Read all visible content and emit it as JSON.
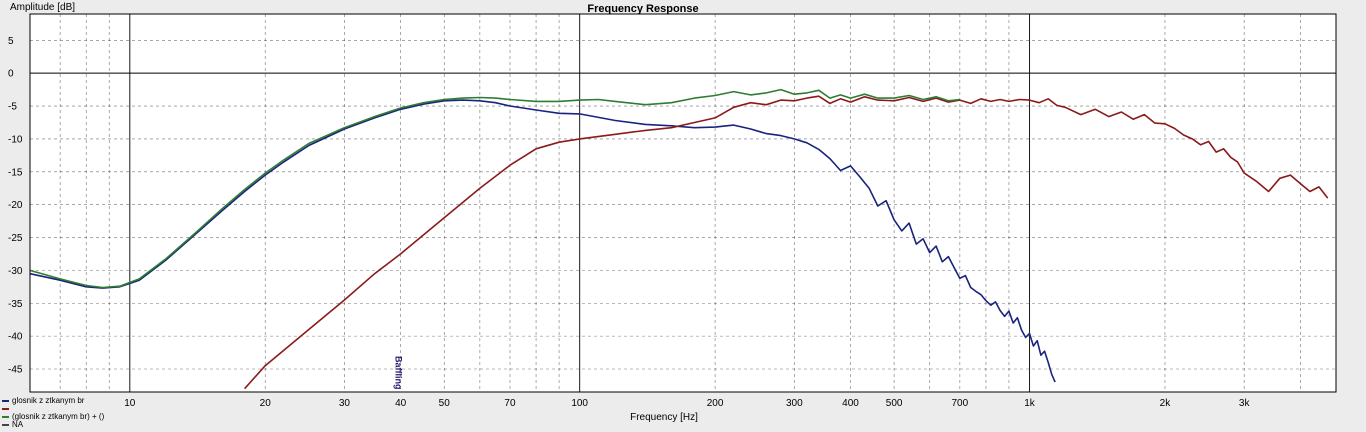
{
  "chart_data": {
    "type": "line",
    "title": "Frequency Response",
    "xlabel": "Frequency [Hz]",
    "ylabel": "Amplitude [dB]",
    "x_scale": "log",
    "xlim": [
      6,
      4800
    ],
    "ylim": [
      -48.5,
      9
    ],
    "grid": true,
    "y_ticks": [
      5,
      0,
      -5,
      -10,
      -15,
      -20,
      -25,
      -30,
      -35,
      -40,
      -45
    ],
    "x_ticks": [
      {
        "value": 10,
        "label": "10"
      },
      {
        "value": 20,
        "label": "20"
      },
      {
        "value": 30,
        "label": "30"
      },
      {
        "value": 40,
        "label": "40"
      },
      {
        "value": 50,
        "label": "50"
      },
      {
        "value": 70,
        "label": "70"
      },
      {
        "value": 100,
        "label": "100"
      },
      {
        "value": 200,
        "label": "200"
      },
      {
        "value": 300,
        "label": "300"
      },
      {
        "value": 400,
        "label": "400"
      },
      {
        "value": 500,
        "label": "500"
      },
      {
        "value": 700,
        "label": "700"
      },
      {
        "value": 1000,
        "label": "1k"
      },
      {
        "value": 2000,
        "label": "2k"
      },
      {
        "value": 3000,
        "label": "3k"
      }
    ],
    "marker": {
      "x": 39,
      "label": "Baffling"
    },
    "legend_position": "bottom-left",
    "series": [
      {
        "name": "glosnik z ztkanym br",
        "color": "#1a237e",
        "x": [
          6,
          7,
          8,
          8.7,
          9.5,
          10.5,
          12,
          14,
          16,
          18,
          20,
          22,
          25,
          30,
          35,
          40,
          45,
          50,
          55,
          60,
          65,
          70,
          80,
          90,
          100,
          120,
          140,
          160,
          180,
          200,
          220,
          240,
          260,
          280,
          300,
          320,
          340,
          360,
          380,
          400,
          420,
          440,
          460,
          480,
          500,
          520,
          540,
          560,
          580,
          600,
          620,
          640,
          660,
          680,
          700,
          720,
          740,
          760,
          780,
          800,
          820,
          840,
          860,
          880,
          900,
          920,
          940,
          960,
          980,
          1000,
          1020,
          1040,
          1060,
          1080,
          1100,
          1120,
          1140
        ],
        "y": [
          -30.5,
          -31.5,
          -32.5,
          -32.7,
          -32.5,
          -31.5,
          -28.5,
          -24.5,
          -21,
          -18,
          -15.5,
          -13.5,
          -11,
          -8.5,
          -6.8,
          -5.5,
          -4.7,
          -4.2,
          -4.1,
          -4.2,
          -4.5,
          -5,
          -5.6,
          -6.1,
          -6.2,
          -7.2,
          -7.8,
          -8,
          -8.3,
          -8.2,
          -7.9,
          -8.5,
          -9.2,
          -9.5,
          -10,
          -10.6,
          -11.6,
          -13,
          -14.8,
          -14.1,
          -15.8,
          -17.5,
          -20.2,
          -19.4,
          -22.3,
          -24,
          -22.8,
          -26,
          -25.2,
          -27.3,
          -26.3,
          -28.7,
          -27.9,
          -29.6,
          -31.2,
          -30.8,
          -32.6,
          -33.2,
          -33.7,
          -34.6,
          -35.3,
          -34.8,
          -36.1,
          -37,
          -36.2,
          -38,
          -37.2,
          -39.1,
          -40.2,
          -39.6,
          -41.5,
          -40.7,
          -42.9,
          -42.3,
          -44,
          -45.8,
          -47
        ]
      },
      {
        "name": "",
        "color": "#8b1a1a",
        "x": [
          18,
          20,
          25,
          30,
          35,
          40,
          50,
          60,
          70,
          80,
          90,
          100,
          120,
          140,
          160,
          180,
          200,
          220,
          240,
          260,
          280,
          300,
          320,
          340,
          360,
          380,
          400,
          430,
          460,
          500,
          540,
          580,
          620,
          660,
          700,
          740,
          780,
          820,
          860,
          900,
          950,
          1000,
          1050,
          1100,
          1150,
          1200,
          1300,
          1400,
          1500,
          1600,
          1700,
          1800,
          1900,
          2000,
          2100,
          2200,
          2300,
          2400,
          2500,
          2600,
          2700,
          2800,
          2900,
          3000,
          3200,
          3400,
          3600,
          3800,
          4000,
          4200,
          4400,
          4600
        ],
        "y": [
          -48,
          -44.5,
          -39,
          -34.5,
          -30.5,
          -27.5,
          -22,
          -17.5,
          -14,
          -11.5,
          -10.5,
          -10,
          -9.3,
          -8.7,
          -8.3,
          -7.5,
          -6.8,
          -5.2,
          -4.5,
          -4.8,
          -4.1,
          -4.2,
          -3.8,
          -3.5,
          -4.6,
          -3.9,
          -4.4,
          -3.6,
          -4.1,
          -4.2,
          -3.7,
          -4.3,
          -3.8,
          -4.4,
          -4.1,
          -4.6,
          -3.9,
          -4.3,
          -4.0,
          -4.3,
          -4.0,
          -4.1,
          -4.5,
          -3.9,
          -4.9,
          -5.2,
          -6.3,
          -5.5,
          -6.6,
          -5.9,
          -7.0,
          -6.3,
          -7.6,
          -7.7,
          -8.4,
          -9.4,
          -10.0,
          -10.9,
          -10.4,
          -12.0,
          -11.5,
          -12.8,
          -13.5,
          -15.2,
          -16.5,
          -18.0,
          -16.0,
          -15.5,
          -16.8,
          -18.0,
          -17.3,
          -19.0
        ]
      },
      {
        "name": "(glosnik z ztkanym br) + ()",
        "color": "#2e7d32",
        "x": [
          6,
          7,
          8,
          8.7,
          9.5,
          10.5,
          12,
          14,
          16,
          18,
          20,
          22,
          25,
          30,
          35,
          40,
          45,
          50,
          55,
          60,
          65,
          70,
          80,
          90,
          100,
          110,
          120,
          140,
          160,
          180,
          200,
          220,
          240,
          260,
          280,
          300,
          320,
          340,
          360,
          380,
          400,
          430,
          460,
          500,
          540,
          580,
          620,
          660,
          700
        ],
        "y": [
          -30,
          -31.3,
          -32.3,
          -32.6,
          -32.4,
          -31.3,
          -28.3,
          -24.3,
          -20.7,
          -17.7,
          -15.2,
          -13.2,
          -10.7,
          -8.3,
          -6.6,
          -5.3,
          -4.5,
          -4,
          -3.8,
          -3.7,
          -3.8,
          -4,
          -4.3,
          -4.3,
          -4.1,
          -4.0,
          -4.3,
          -4.8,
          -4.5,
          -3.8,
          -3.4,
          -2.8,
          -3.3,
          -3.0,
          -2.5,
          -3.2,
          -3.0,
          -2.6,
          -3.8,
          -3.3,
          -3.8,
          -3.2,
          -3.8,
          -3.8,
          -3.4,
          -4.0,
          -3.6,
          -4.2,
          -4.0
        ]
      },
      {
        "name": "NA",
        "color": "#444444",
        "x": [],
        "y": []
      }
    ]
  }
}
